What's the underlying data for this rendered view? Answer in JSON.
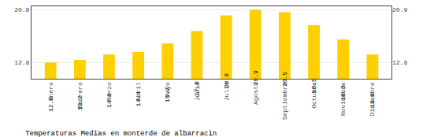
{
  "chart_data": {
    "type": "bar",
    "title": "Temperaturas Medias en monterde de albarracin",
    "categories": [
      "Enero",
      "Febrero",
      "Marzo",
      "Abril",
      "Mayo",
      "Junio",
      "Julio",
      "Agosto",
      "Septiembre",
      "Octubre",
      "Noviembre",
      "Diciembre"
    ],
    "values": [
      12.8,
      13.2,
      14.0,
      14.4,
      15.7,
      17.6,
      20.0,
      20.9,
      20.5,
      18.5,
      16.3,
      14.0
    ],
    "value_labels": [
      "12.8",
      "13.2",
      "14.0",
      "14.4",
      "15.7",
      "17.6",
      "20.0",
      "20.9",
      "20.5",
      "18.5",
      "16.3",
      "14.0"
    ],
    "data_labels": true,
    "color": "#FFD000",
    "ylim": [
      10.3,
      21.4
    ],
    "yticks": [
      12.8,
      20.9
    ],
    "y2lim": [
      10.3,
      21.4
    ],
    "y2ticks": [
      12.8,
      20.9
    ],
    "grid": true
  }
}
